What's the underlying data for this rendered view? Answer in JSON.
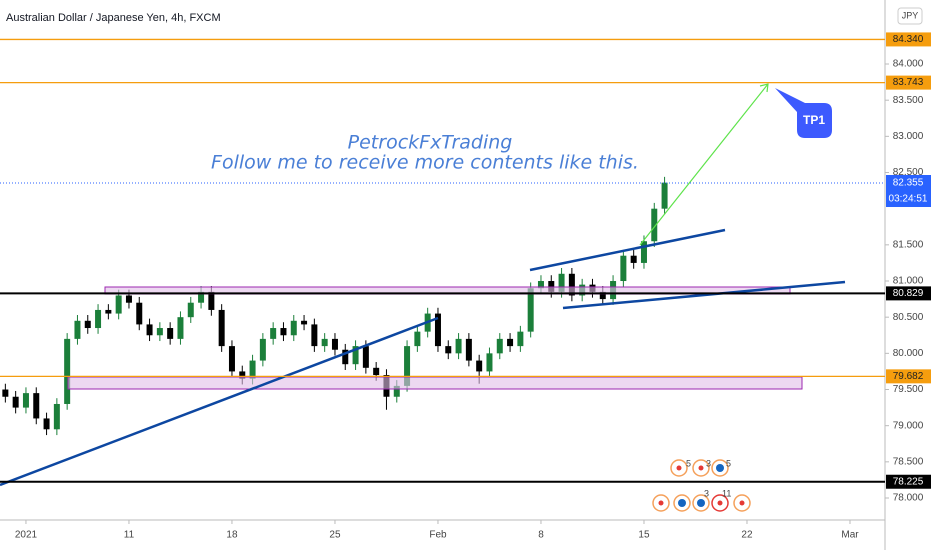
{
  "chart_data": {
    "type": "candlestick",
    "title": "Australian Dollar / Japanese Yen, 4h, FXCM",
    "currency": "JPY",
    "watermark": [
      "PetrockFxTrading",
      "Follow me to receive more contents like this."
    ],
    "target_label": "TP1",
    "up_color": "#1b7f3a",
    "down_color": "#000000",
    "xlim": [
      -1.26,
      41.7
    ],
    "xticks": [
      {
        "value": 0,
        "label": "2021"
      },
      {
        "value": 5,
        "label": "11"
      },
      {
        "value": 10,
        "label": "18"
      },
      {
        "value": 15,
        "label": "25"
      },
      {
        "value": 20,
        "label": "Feb"
      },
      {
        "value": 25,
        "label": "8"
      },
      {
        "value": 30,
        "label": "15"
      },
      {
        "value": 35,
        "label": "22"
      },
      {
        "value": 40,
        "label": "Mar"
      }
    ],
    "ylim": [
      77.696,
      84.885
    ],
    "yticks": [
      {
        "value": 84,
        "label": "84.000"
      },
      {
        "value": 83.5,
        "label": "83.500"
      },
      {
        "value": 83,
        "label": "83.000"
      },
      {
        "value": 82.5,
        "label": "82.500"
      },
      {
        "value": 81.5,
        "label": "81.500"
      },
      {
        "value": 81,
        "label": "81.000"
      },
      {
        "value": 80.5,
        "label": "80.500"
      },
      {
        "value": 80,
        "label": "80.000"
      },
      {
        "value": 79.5,
        "label": "79.500"
      },
      {
        "value": 79,
        "label": "79.000"
      },
      {
        "value": 78.5,
        "label": "78.500"
      },
      {
        "value": 78,
        "label": "78.000"
      }
    ],
    "levels": [
      {
        "value": 84.34,
        "label": "84.340",
        "color": "#f59d0e"
      },
      {
        "value": 83.743,
        "label": "83.743",
        "color": "#f59d0e"
      },
      {
        "value": 80.829,
        "label": "80.829",
        "color": "#000000"
      },
      {
        "value": 79.682,
        "label": "79.682",
        "color": "#f59d0e"
      },
      {
        "value": 78.225,
        "label": "78.225",
        "color": "#000000"
      }
    ],
    "last_price": {
      "value": 82.355,
      "label": "82.355",
      "countdown": "03:24:51",
      "color": "#2962ff"
    },
    "event_badges": [
      5,
      3,
      5,
      3,
      11
    ],
    "x": [
      -1,
      -0.5,
      0,
      0.5,
      1,
      1.5,
      2,
      2.5,
      3,
      3.5,
      4,
      4.5,
      5,
      5.5,
      6,
      6.5,
      7,
      7.5,
      8,
      8.5,
      9,
      9.5,
      10,
      10.5,
      11,
      11.5,
      12,
      12.5,
      13,
      13.5,
      14,
      14.5,
      15,
      15.5,
      16,
      16.5,
      17,
      17.5,
      18,
      18.5,
      19,
      19.5,
      20,
      20.5,
      21,
      21.5,
      22,
      22.5,
      23,
      23.5,
      24,
      24.5,
      25,
      25.5,
      26,
      26.5,
      27,
      27.5,
      28,
      28.5,
      29,
      29.5,
      30,
      30.5,
      31
    ],
    "open": [
      79.5,
      79.4,
      79.25,
      79.45,
      79.1,
      78.95,
      79.3,
      80.2,
      80.45,
      80.35,
      80.6,
      80.55,
      80.8,
      80.7,
      80.4,
      80.25,
      80.35,
      80.2,
      80.5,
      80.7,
      80.85,
      80.6,
      80.1,
      79.75,
      79.65,
      79.9,
      80.2,
      80.35,
      80.25,
      80.45,
      80.4,
      80.1,
      80.2,
      80.05,
      79.85,
      80.1,
      79.8,
      79.7,
      79.4,
      79.55,
      80.1,
      80.3,
      80.55,
      80.1,
      80.0,
      80.2,
      79.9,
      79.75,
      80.0,
      80.2,
      80.1,
      80.3,
      80.9,
      81.0,
      80.85,
      81.1,
      80.8,
      80.95,
      80.85,
      80.75,
      81.0,
      81.35,
      81.25,
      81.55,
      82.0
    ],
    "high": [
      79.58,
      79.48,
      79.53,
      79.53,
      79.18,
      79.38,
      80.28,
      80.53,
      80.53,
      80.68,
      80.68,
      80.88,
      80.88,
      80.78,
      80.48,
      80.43,
      80.43,
      80.58,
      80.78,
      80.93,
      80.93,
      80.68,
      80.18,
      79.83,
      79.98,
      80.28,
      80.43,
      80.43,
      80.53,
      80.53,
      80.48,
      80.28,
      80.28,
      80.13,
      80.18,
      80.18,
      79.88,
      79.78,
      79.63,
      80.18,
      80.38,
      80.63,
      80.63,
      80.18,
      80.28,
      80.28,
      79.98,
      80.08,
      80.28,
      80.28,
      80.38,
      80.98,
      81.08,
      81.08,
      81.18,
      81.18,
      81.03,
      81.03,
      80.93,
      81.08,
      81.43,
      81.43,
      81.63,
      82.08,
      82.44
    ],
    "low": [
      79.32,
      79.17,
      79.17,
      79.02,
      78.87,
      78.87,
      79.22,
      80.12,
      80.27,
      80.27,
      80.47,
      80.47,
      80.62,
      80.32,
      80.17,
      80.17,
      80.12,
      80.12,
      80.42,
      80.62,
      80.52,
      80.02,
      79.67,
      79.57,
      79.57,
      79.82,
      80.12,
      80.17,
      80.17,
      80.32,
      80.02,
      80.02,
      79.97,
      79.77,
      79.77,
      79.72,
      79.62,
      79.22,
      79.32,
      79.47,
      80.02,
      80.22,
      80.02,
      79.92,
      79.92,
      79.82,
      79.58,
      79.67,
      79.92,
      80.02,
      80.02,
      80.22,
      80.82,
      80.77,
      80.77,
      80.72,
      80.72,
      80.77,
      80.67,
      80.67,
      80.92,
      81.17,
      81.17,
      81.47,
      81.92
    ],
    "close": [
      79.4,
      79.25,
      79.45,
      79.1,
      78.95,
      79.3,
      80.2,
      80.45,
      80.35,
      80.6,
      80.55,
      80.8,
      80.7,
      80.4,
      80.25,
      80.35,
      80.2,
      80.5,
      80.7,
      80.85,
      80.6,
      80.1,
      79.75,
      79.65,
      79.9,
      80.2,
      80.35,
      80.25,
      80.45,
      80.4,
      80.1,
      80.2,
      80.05,
      79.85,
      80.1,
      79.8,
      79.7,
      79.4,
      79.55,
      80.1,
      80.3,
      80.55,
      80.1,
      80.0,
      80.2,
      79.9,
      79.75,
      80.0,
      80.2,
      80.1,
      80.3,
      80.9,
      81.0,
      80.85,
      81.1,
      80.8,
      80.95,
      80.85,
      80.75,
      81.0,
      81.35,
      81.25,
      81.55,
      82.0,
      82.36
    ]
  }
}
